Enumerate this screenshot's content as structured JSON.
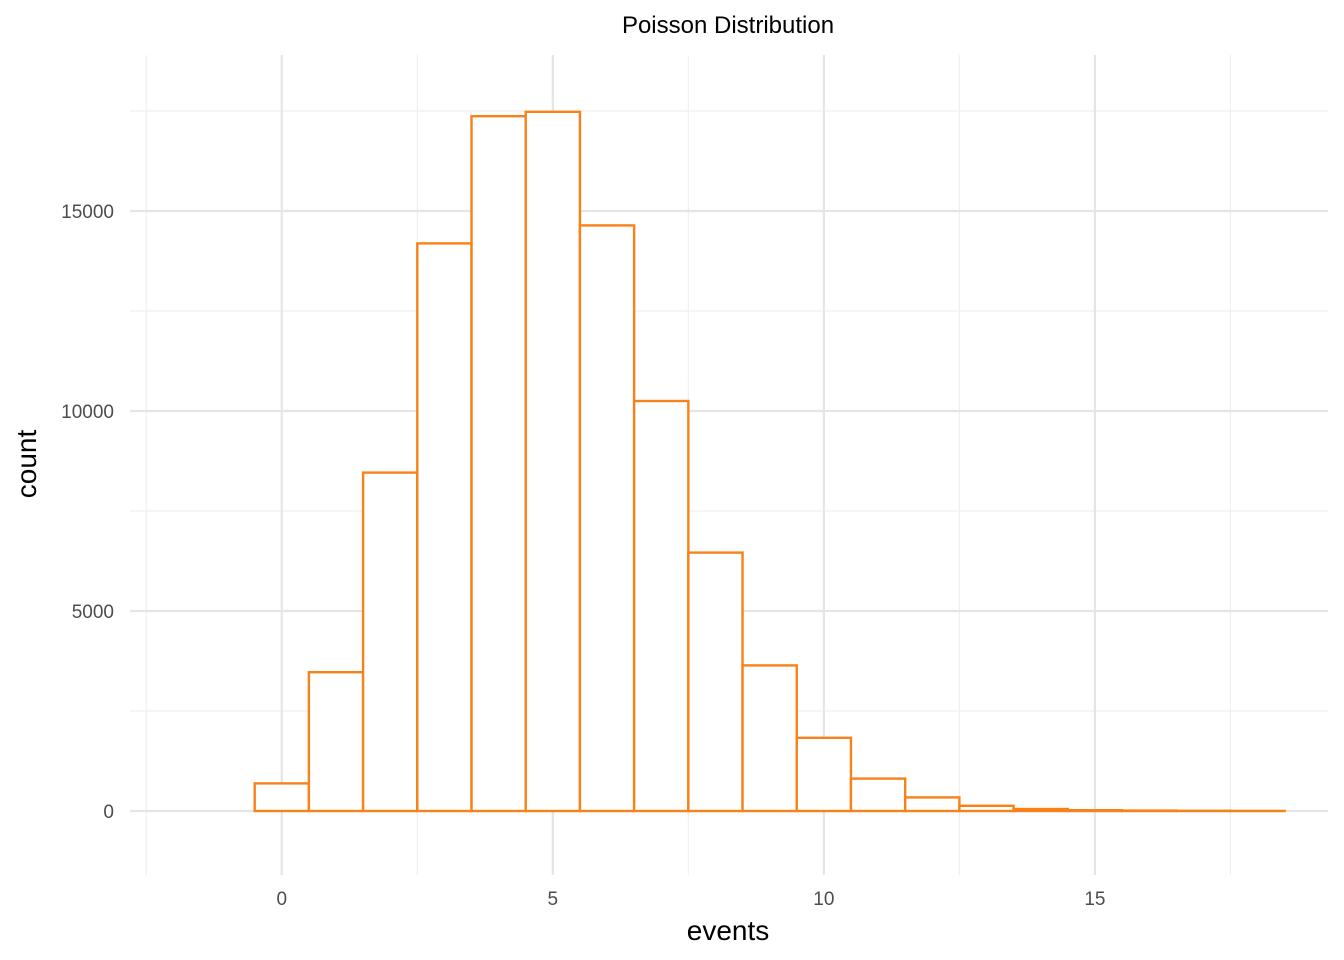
{
  "chart_data": {
    "type": "bar",
    "title": "Poisson Distribution",
    "xlabel": "events",
    "ylabel": "count",
    "bin_width": 1,
    "x": [
      0,
      1,
      2,
      3,
      4,
      5,
      6,
      7,
      8,
      9,
      10,
      11,
      12,
      13,
      14,
      15,
      16,
      17,
      18
    ],
    "values": [
      690,
      3470,
      8460,
      14190,
      17370,
      17480,
      14640,
      10250,
      6460,
      3640,
      1830,
      810,
      340,
      130,
      50,
      20,
      10,
      5,
      2
    ],
    "xlim": [
      -2.8,
      19.3
    ],
    "ylim": [
      -1600,
      18900
    ],
    "x_ticks": [
      0,
      5,
      10,
      15
    ],
    "x_tick_labels": [
      "0",
      "5",
      "10",
      "15"
    ],
    "y_ticks": [
      0,
      5000,
      10000,
      15000
    ],
    "y_tick_labels": [
      "0",
      "5000",
      "10000",
      "15000"
    ],
    "grid": true,
    "bar_outline_color": "#f8821a",
    "bar_fill_color": "#ffffff"
  }
}
